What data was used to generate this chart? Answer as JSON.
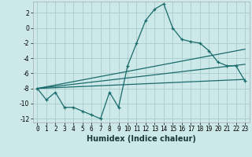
{
  "xlabel": "Humidex (Indice chaleur)",
  "bg_color": "#cce8e8",
  "grid_color": "#b0d8d8",
  "line_color": "#1a6b6b",
  "xlim": [
    -0.5,
    23.5
  ],
  "ylim": [
    -12.5,
    3.5
  ],
  "yticks": [
    -12,
    -10,
    -8,
    -6,
    -4,
    -2,
    0,
    2
  ],
  "xticks": [
    0,
    1,
    2,
    3,
    4,
    5,
    6,
    7,
    8,
    9,
    10,
    11,
    12,
    13,
    14,
    15,
    16,
    17,
    18,
    19,
    20,
    21,
    22,
    23
  ],
  "main_x": [
    0,
    1,
    2,
    3,
    4,
    5,
    6,
    7,
    8,
    9,
    10,
    11,
    12,
    13,
    14,
    15,
    16,
    17,
    18,
    19,
    20,
    21,
    22,
    23
  ],
  "main_y": [
    -8.0,
    -9.5,
    -8.5,
    -10.5,
    -10.5,
    -11.0,
    -11.5,
    -12.0,
    -8.5,
    -10.5,
    -5.0,
    -2.0,
    1.0,
    2.5,
    3.2,
    0.0,
    -1.5,
    -1.8,
    -2.0,
    -3.0,
    -4.5,
    -5.0,
    -5.0,
    -7.0
  ],
  "line1_x": [
    0,
    23
  ],
  "line1_y": [
    -8.0,
    -2.8
  ],
  "line2_x": [
    0,
    23
  ],
  "line2_y": [
    -8.0,
    -4.8
  ],
  "line3_x": [
    0,
    23
  ],
  "line3_y": [
    -8.0,
    -6.8
  ],
  "xlabel_fontsize": 7,
  "ylabel_fontsize": 6,
  "tick_fontsize": 5.5
}
